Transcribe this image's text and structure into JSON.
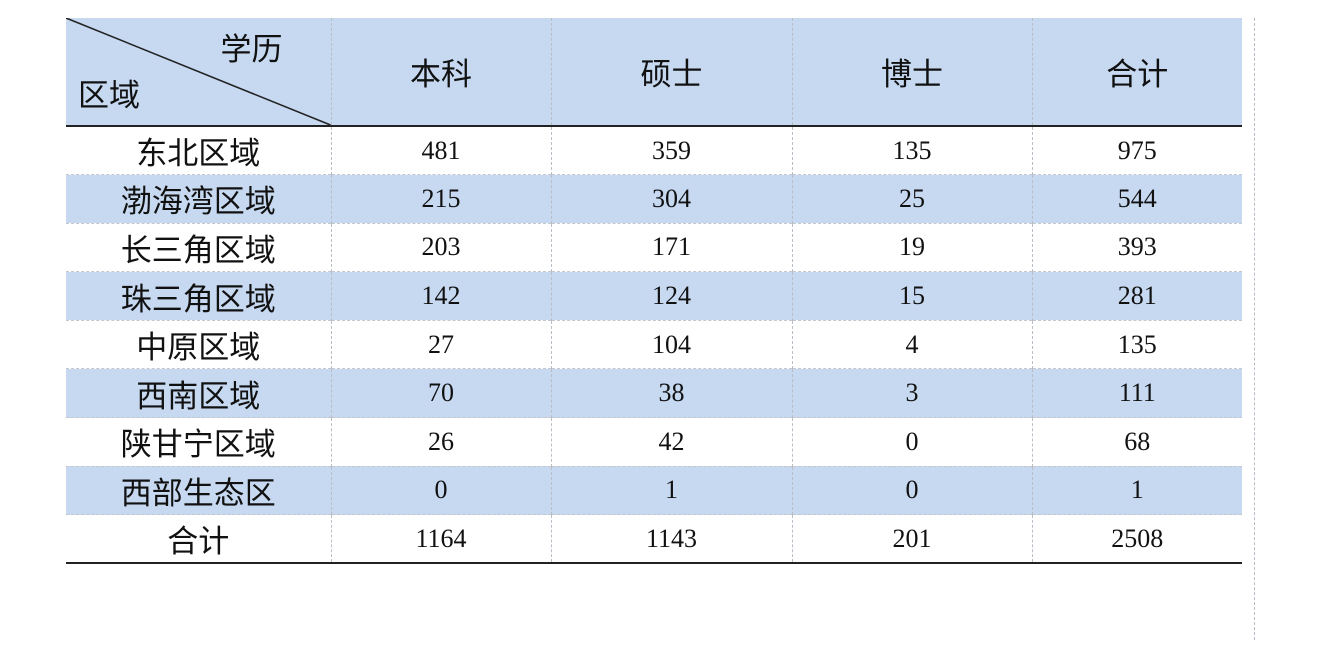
{
  "table": {
    "corner": {
      "top_label": "学历",
      "bottom_label": "区域"
    },
    "columns": [
      "本科",
      "硕士",
      "博士",
      "合计"
    ],
    "rows": [
      {
        "region": "东北区域",
        "values": [
          "481",
          "359",
          "135",
          "975"
        ]
      },
      {
        "region": "渤海湾区域",
        "values": [
          "215",
          "304",
          "25",
          "544"
        ]
      },
      {
        "region": "长三角区域",
        "values": [
          "203",
          "171",
          "19",
          "393"
        ]
      },
      {
        "region": "珠三角区域",
        "values": [
          "142",
          "124",
          "15",
          "281"
        ]
      },
      {
        "region": "中原区域",
        "values": [
          "27",
          "104",
          "4",
          "135"
        ]
      },
      {
        "region": "西南区域",
        "values": [
          "70",
          "38",
          "3",
          "111"
        ]
      },
      {
        "region": "陕甘宁区域",
        "values": [
          "26",
          "42",
          "0",
          "68"
        ]
      },
      {
        "region": "西部生态区",
        "values": [
          "0",
          "1",
          "0",
          "1"
        ]
      },
      {
        "region": "合计",
        "values": [
          "1164",
          "1143",
          "201",
          "2508"
        ]
      }
    ]
  },
  "colors": {
    "header_fill": "#c6d9f1",
    "alt_row_fill": "#c6d9f1",
    "rule": "#222222"
  }
}
